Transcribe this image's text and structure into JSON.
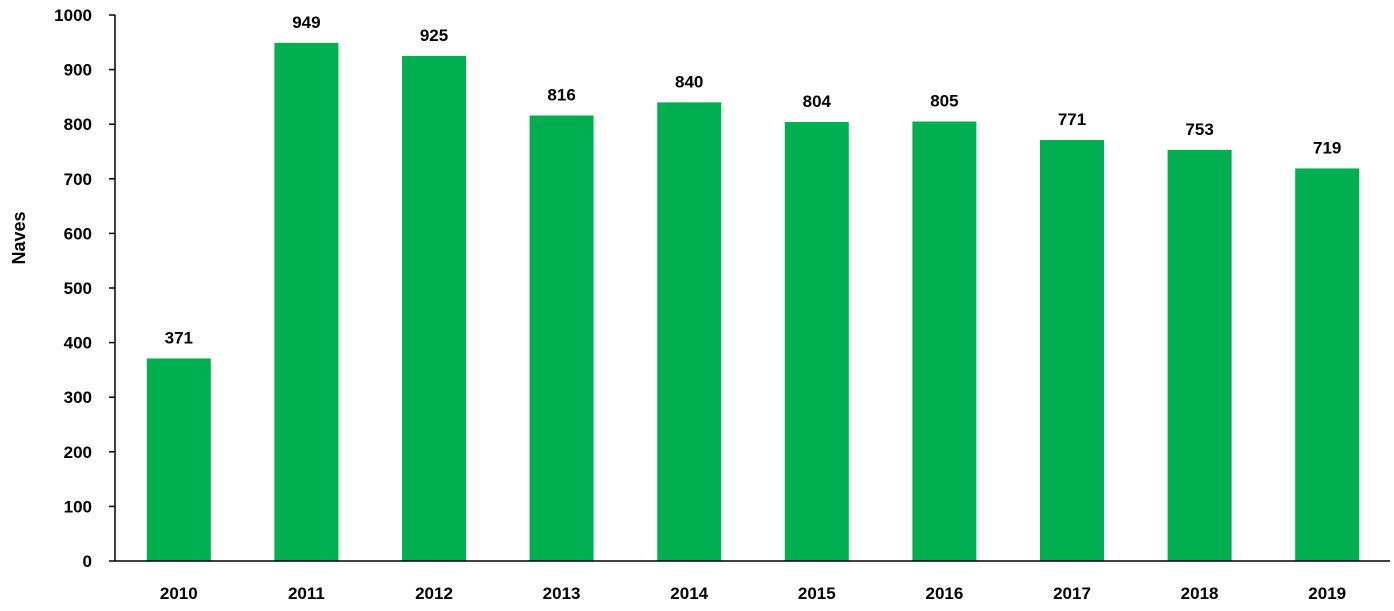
{
  "chart_data": {
    "type": "bar",
    "title": "",
    "xlabel": "",
    "ylabel": "Naves",
    "categories": [
      "2010",
      "2011",
      "2012",
      "2013",
      "2014",
      "2015",
      "2016",
      "2017",
      "2018",
      "2019"
    ],
    "values": [
      371,
      949,
      925,
      816,
      840,
      804,
      805,
      771,
      753,
      719
    ],
    "ylim": [
      0,
      1000
    ],
    "yticks": [
      0,
      100,
      200,
      300,
      400,
      500,
      600,
      700,
      800,
      900,
      1000
    ],
    "grid": false,
    "legend": "none",
    "data_labels": true,
    "colors": {
      "bar": "#00b050",
      "axis": "#000000",
      "text": "#000000"
    }
  }
}
